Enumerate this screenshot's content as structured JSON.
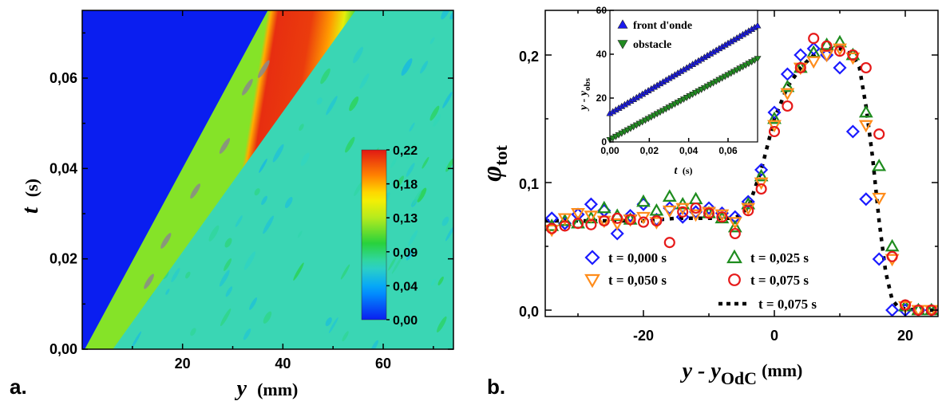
{
  "panels": {
    "a": "a.",
    "b": "b."
  },
  "chart_data": [
    {
      "type": "heatmap",
      "xlabel": {
        "main": "y",
        "unit": "(mm)"
      },
      "ylabel": {
        "main": "t",
        "unit": "(s)"
      },
      "xlim": [
        0,
        74
      ],
      "ylim": [
        0,
        0.075
      ],
      "x_ticks": [
        20,
        40,
        60
      ],
      "x_tick_labels": [
        "20",
        "40",
        "60"
      ],
      "y_ticks": [
        0.0,
        0.02,
        0.04,
        0.06
      ],
      "y_tick_labels": [
        "0,00",
        "0,02",
        "0,04",
        "0,06"
      ],
      "colorbar": {
        "ticks": [
          0.22,
          0.18,
          0.13,
          0.09,
          0.04,
          0.0
        ],
        "tick_labels": [
          "0,22",
          "0,18",
          "0,13",
          "0,09",
          "0,04",
          "0,00"
        ],
        "range": [
          0,
          0.22
        ]
      },
      "front": {
        "y_at_t0": 0.5,
        "y_at_tmax": 37,
        "peak_width_mm": 14
      },
      "background_value": 0.075,
      "peak_value": 0.21
    },
    {
      "type": "scatter",
      "xlabel": {
        "main": "y - y",
        "sub": "OdC",
        "unit": "(mm)"
      },
      "ylabel": {
        "main": "φ",
        "sub": "tot"
      },
      "xlim": [
        -35,
        25
      ],
      "ylim": [
        -0.005,
        0.235
      ],
      "x_ticks": [
        -20,
        0,
        20
      ],
      "x_tick_labels": [
        "-20",
        "0",
        "20"
      ],
      "y_ticks": [
        0.0,
        0.1,
        0.2
      ],
      "y_tick_labels": [
        "0,0",
        "0,1",
        "0,2"
      ],
      "series": [
        {
          "name": "t = 0,000 s",
          "marker": "diamond",
          "color": "#1a1aff",
          "x": [
            -34,
            -32,
            -30,
            -28,
            -26,
            -24,
            -22,
            -20,
            -18,
            -16,
            -14,
            -12,
            -10,
            -8,
            -6,
            -4,
            -2,
            0,
            2,
            4,
            6,
            8,
            10,
            12,
            14,
            16,
            18,
            20,
            22,
            24
          ],
          "y": [
            0.072,
            0.068,
            0.075,
            0.083,
            0.078,
            0.06,
            0.074,
            0.083,
            0.071,
            0.08,
            0.073,
            0.077,
            0.08,
            0.076,
            0.073,
            0.085,
            0.11,
            0.155,
            0.185,
            0.2,
            0.205,
            0.2,
            0.19,
            0.14,
            0.087,
            0.04,
            0.0,
            0.0,
            0.0,
            0.0
          ]
        },
        {
          "name": "t = 0,025 s",
          "marker": "triangle-up",
          "color": "#1e8c1e",
          "x": [
            -34,
            -32,
            -30,
            -28,
            -26,
            -24,
            -22,
            -20,
            -18,
            -16,
            -14,
            -12,
            -10,
            -8,
            -6,
            -4,
            -2,
            0,
            2,
            4,
            6,
            8,
            10,
            12,
            14,
            16,
            18,
            20,
            22,
            24
          ],
          "y": [
            0.066,
            0.07,
            0.068,
            0.072,
            0.08,
            0.074,
            0.071,
            0.085,
            0.078,
            0.089,
            0.083,
            0.087,
            0.076,
            0.072,
            0.065,
            0.083,
            0.105,
            0.15,
            0.175,
            0.19,
            0.202,
            0.208,
            0.21,
            0.2,
            0.155,
            0.113,
            0.05,
            0.003,
            0.0,
            0.0
          ]
        },
        {
          "name": "t = 0,050 s",
          "marker": "triangle-down",
          "color": "#ff8c1a",
          "x": [
            -34,
            -32,
            -30,
            -28,
            -26,
            -24,
            -22,
            -20,
            -18,
            -16,
            -14,
            -12,
            -10,
            -8,
            -6,
            -4,
            -2,
            0,
            2,
            4,
            6,
            8,
            10,
            12,
            14,
            16,
            18,
            20,
            22,
            24
          ],
          "y": [
            0.063,
            0.072,
            0.076,
            0.074,
            0.07,
            0.068,
            0.071,
            0.073,
            0.069,
            0.078,
            0.08,
            0.075,
            0.077,
            0.075,
            0.069,
            0.08,
            0.1,
            0.145,
            0.17,
            0.19,
            0.195,
            0.2,
            0.205,
            0.198,
            0.145,
            0.088,
            0.04,
            0.003,
            0.0,
            0.0
          ]
        },
        {
          "name": "t = 0,075 s",
          "marker": "circle",
          "color": "#e61919",
          "x": [
            -34,
            -32,
            -30,
            -28,
            -26,
            -24,
            -22,
            -20,
            -18,
            -16,
            -14,
            -12,
            -10,
            -8,
            -6,
            -4,
            -2,
            0,
            2,
            4,
            6,
            8,
            10,
            12,
            14,
            16,
            18,
            20,
            22,
            24
          ],
          "y": [
            0.064,
            0.066,
            0.068,
            0.067,
            0.07,
            0.072,
            0.071,
            0.069,
            0.07,
            0.053,
            0.077,
            0.08,
            0.076,
            0.073,
            0.06,
            0.078,
            0.095,
            0.14,
            0.16,
            0.19,
            0.213,
            0.207,
            0.203,
            0.2,
            0.19,
            0.138,
            0.042,
            0.004,
            0.0,
            0.0
          ]
        }
      ],
      "line": {
        "name": "t = 0,075 s",
        "style": "dotted",
        "color": "#000000",
        "x": [
          -35,
          -30,
          -25,
          -20,
          -15,
          -10,
          -6,
          -4,
          -2,
          0,
          2,
          4,
          6,
          8,
          10,
          12,
          13,
          14,
          15,
          16,
          17,
          18,
          19,
          20,
          22,
          25
        ],
        "y": [
          0.07,
          0.07,
          0.07,
          0.07,
          0.072,
          0.072,
          0.072,
          0.08,
          0.11,
          0.15,
          0.175,
          0.19,
          0.2,
          0.205,
          0.205,
          0.2,
          0.19,
          0.16,
          0.12,
          0.07,
          0.03,
          0.008,
          0.002,
          0.001,
          0.0,
          0.0
        ]
      },
      "legend_rows": [
        [
          "t = 0,000 s",
          "t = 0,025 s"
        ],
        [
          "t = 0,050 s",
          "t = 0,075 s"
        ],
        [
          "",
          "t = 0,075 s"
        ]
      ]
    },
    {
      "type": "scatter",
      "inset": true,
      "xlabel": {
        "main": "t",
        "unit": "(s)"
      },
      "ylabel": {
        "main": "y - y",
        "sub": "obs"
      },
      "xlim": [
        0,
        0.075
      ],
      "ylim": [
        0,
        60
      ],
      "x_ticks": [
        0,
        0.02,
        0.04,
        0.06
      ],
      "x_tick_labels": [
        "0,00",
        "0,02",
        "0,04",
        "0,06"
      ],
      "y_ticks": [
        0,
        20,
        40,
        60
      ],
      "y_tick_labels": [
        "0",
        "20",
        "40",
        "60"
      ],
      "series": [
        {
          "name": "front d'onde",
          "marker": "triangle-up",
          "color": "#1a1aee",
          "y0": 13,
          "y1": 53
        },
        {
          "name": "obstacle",
          "marker": "triangle-down",
          "color": "#228b22",
          "y0": 1,
          "y1": 38
        }
      ]
    }
  ]
}
